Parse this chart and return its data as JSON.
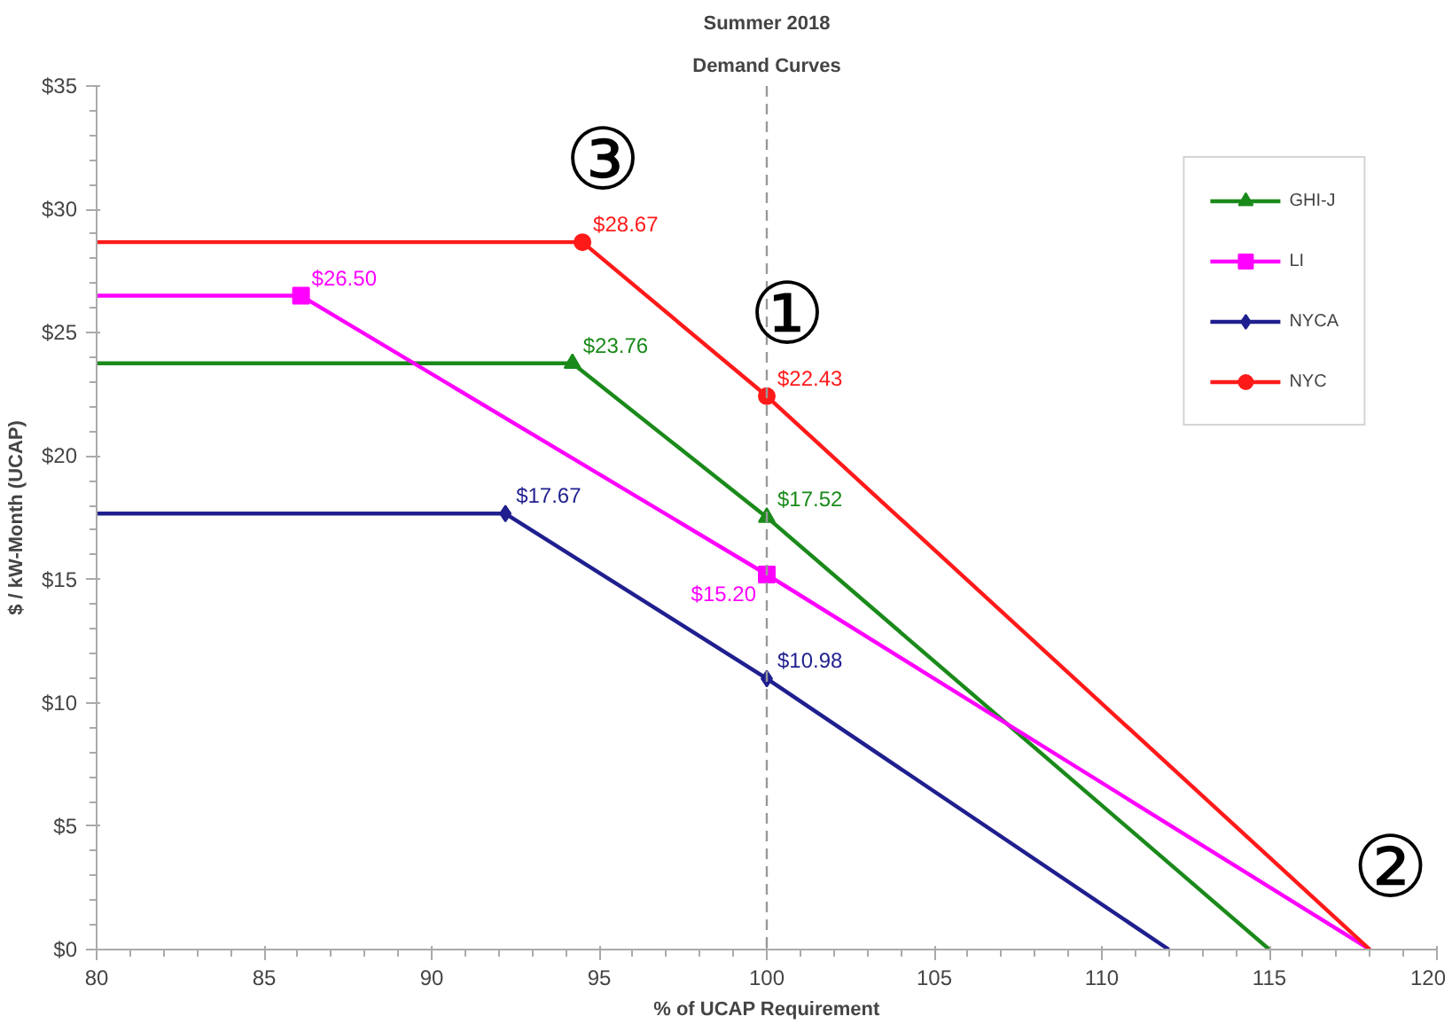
{
  "chart_data": {
    "type": "line",
    "title": "Summer 2018",
    "subtitle": "Demand Curves",
    "xlabel": "% of UCAP Requirement",
    "ylabel": "$ / kW-Month (UCAP)",
    "xlim": [
      80,
      120
    ],
    "xticks": [
      80,
      85,
      90,
      95,
      100,
      105,
      110,
      115,
      120
    ],
    "ylim": [
      0,
      35
    ],
    "yticks": [
      {
        "value": 0,
        "label": "$0"
      },
      {
        "value": 5,
        "label": "$5"
      },
      {
        "value": 10,
        "label": "$10"
      },
      {
        "value": 15,
        "label": "$15"
      },
      {
        "value": 20,
        "label": "$20"
      },
      {
        "value": 25,
        "label": "$25"
      },
      {
        "value": 30,
        "label": "$30"
      },
      {
        "value": 35,
        "label": "$35"
      }
    ],
    "grid": false,
    "legend": "top right",
    "line_style": "solid",
    "series": [
      {
        "name": "GHI-J",
        "color": "#1a8a1a",
        "marker": "triangle",
        "x": [
          80,
          94.2,
          100,
          115
        ],
        "values": [
          23.76,
          23.76,
          17.52,
          0
        ],
        "value_labels": [
          null,
          "$23.76",
          "$17.52",
          null
        ]
      },
      {
        "name": "LI",
        "color": "#ff00ff",
        "marker": "square",
        "x": [
          80,
          86.1,
          100,
          118
        ],
        "values": [
          26.5,
          26.5,
          15.2,
          0
        ],
        "value_labels": [
          null,
          "$26.50",
          "$15.20",
          null
        ]
      },
      {
        "name": "NYCA",
        "color": "#1f1f8f",
        "marker": "diamond",
        "x": [
          80,
          92.2,
          100,
          112
        ],
        "values": [
          17.67,
          17.67,
          10.98,
          0
        ],
        "value_labels": [
          null,
          "$17.67",
          "$10.98",
          null
        ]
      },
      {
        "name": "NYC",
        "color": "#ff1a1a",
        "marker": "circle",
        "x": [
          80,
          94.5,
          100,
          118
        ],
        "values": [
          28.67,
          28.67,
          22.43,
          0
        ],
        "value_labels": [
          null,
          "$28.67",
          "$22.43",
          null
        ]
      }
    ],
    "ref_lines": [
      {
        "axis": "x",
        "value": 100,
        "color": "#999999",
        "line_style": "dashed"
      }
    ],
    "annotations": [
      {
        "text": "③",
        "x": 94.5,
        "y": 28.67
      },
      {
        "text": "①",
        "x": 100,
        "y": 22.43
      },
      {
        "text": "②",
        "x": 118,
        "y": 0
      }
    ]
  }
}
